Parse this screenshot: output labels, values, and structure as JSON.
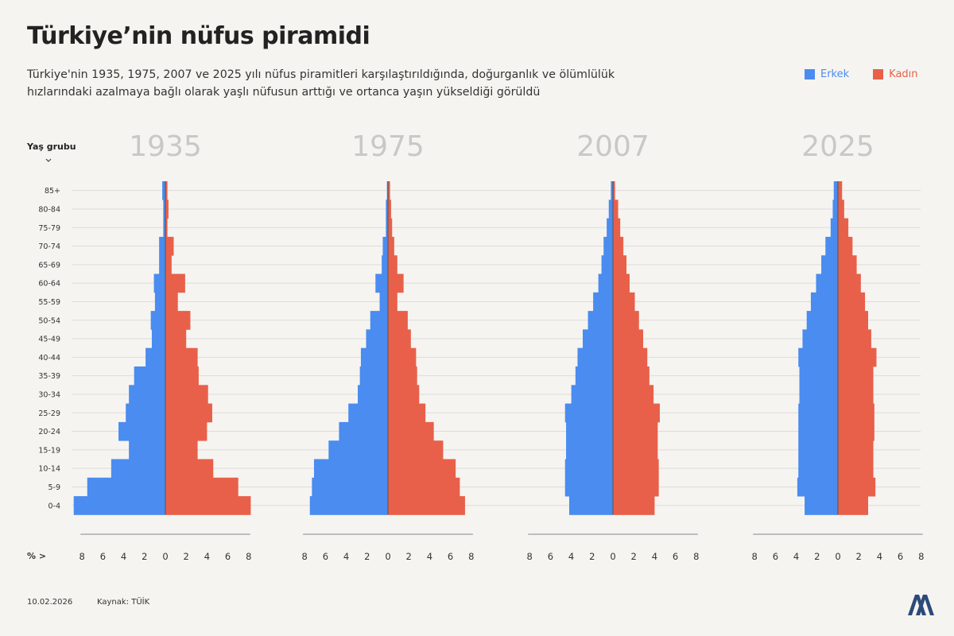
{
  "header": {
    "title": "Türkiye’nin nüfus piramidi",
    "subtitle_line1": "Türkiye'nin 1935, 1975, 2007 ve 2025 yılı nüfus piramitleri karşılaştırıldığında, doğurganlık ve ölümlülük",
    "subtitle_line2": "hızlarındaki azalmaya bağlı olarak yaşlı nüfusun arttığı ve ortanca yaşın yükseldiği görüldü"
  },
  "legend": {
    "male": "Erkek",
    "female": "Kadın"
  },
  "colors": {
    "male": "#4a8cf0",
    "female": "#e8604a",
    "year_label": "#c8c8c8",
    "grid": "#dcdcdc",
    "axis": "#bdbdbd"
  },
  "footer": {
    "date": "10.02.2026",
    "source": "Kaynak: TÜİK",
    "logo_text": "AA"
  },
  "chart_data": {
    "type": "population-pyramid",
    "y_axis_title": "Yaş grubu",
    "x_axis_prefix": "% >",
    "x_ticks": [
      "8",
      "6",
      "4",
      "2",
      "0",
      "2",
      "4",
      "6",
      "8"
    ],
    "xlim": [
      -8,
      8
    ],
    "age_groups": [
      "85+",
      "80-84",
      "75-79",
      "70-74",
      "65-69",
      "60-64",
      "55-59",
      "50-54",
      "45-49",
      "40-44",
      "35-39",
      "30-34",
      "25-29",
      "20-24",
      "15-19",
      "10-14",
      "5-9",
      "0-4"
    ],
    "pyramids": [
      {
        "year": "1935",
        "male": [
          0.3,
          0.2,
          0.2,
          0.6,
          0.6,
          1.1,
          1.0,
          1.4,
          1.3,
          1.9,
          3.0,
          3.5,
          3.8,
          4.5,
          3.5,
          5.2,
          7.5,
          8.8
        ],
        "female": [
          0.2,
          0.3,
          0.2,
          0.8,
          0.6,
          1.9,
          1.2,
          2.4,
          2.0,
          3.1,
          3.2,
          4.1,
          4.5,
          4.0,
          3.1,
          4.6,
          7.0,
          8.2
        ]
      },
      {
        "year": "1975",
        "male": [
          0.1,
          0.2,
          0.2,
          0.5,
          0.6,
          1.2,
          0.8,
          1.7,
          2.1,
          2.6,
          2.7,
          2.9,
          3.8,
          4.7,
          5.7,
          7.1,
          7.3,
          7.5
        ],
        "female": [
          0.2,
          0.3,
          0.4,
          0.6,
          0.9,
          1.5,
          0.9,
          1.9,
          2.2,
          2.7,
          2.8,
          3.0,
          3.6,
          4.4,
          5.3,
          6.5,
          6.9,
          7.4
        ]
      },
      {
        "year": "2007",
        "male": [
          0.2,
          0.4,
          0.6,
          0.9,
          1.1,
          1.4,
          1.9,
          2.4,
          2.9,
          3.4,
          3.6,
          4.0,
          4.6,
          4.5,
          4.5,
          4.6,
          4.6,
          4.2
        ],
        "female": [
          0.2,
          0.5,
          0.7,
          1.0,
          1.3,
          1.6,
          2.1,
          2.5,
          2.9,
          3.3,
          3.5,
          3.9,
          4.5,
          4.3,
          4.3,
          4.4,
          4.4,
          4.0
        ]
      },
      {
        "year": "2025",
        "male": [
          0.4,
          0.5,
          0.7,
          1.2,
          1.6,
          2.1,
          2.6,
          3.0,
          3.4,
          3.8,
          3.7,
          3.7,
          3.8,
          3.8,
          3.8,
          3.8,
          3.9,
          3.2
        ],
        "female": [
          0.4,
          0.6,
          1.0,
          1.4,
          1.8,
          2.2,
          2.6,
          2.9,
          3.2,
          3.7,
          3.4,
          3.4,
          3.5,
          3.5,
          3.4,
          3.4,
          3.6,
          2.9
        ]
      }
    ]
  }
}
